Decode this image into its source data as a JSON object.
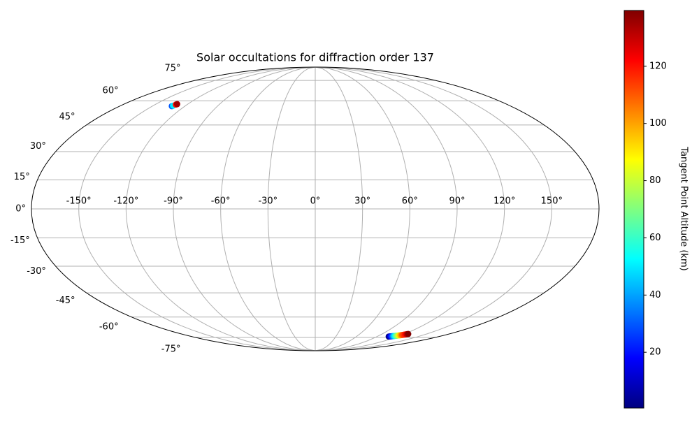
{
  "chart_data": {
    "type": "scatter",
    "projection": "mollweide",
    "title": "Solar occultations for diffraction order 137",
    "colorbar_label": "Tangent Point Altitude (km)",
    "colormap": "jet",
    "grid": true,
    "series": [
      {
        "x": [
          -132,
          -131.5,
          -130.5,
          -130,
          107,
          108.2,
          109.4,
          110.6,
          111.8,
          113,
          114.2,
          115.4,
          116.6,
          117.8,
          119,
          120.2,
          121.4,
          122.6,
          123.8,
          125
        ],
        "y": [
          56.5,
          56.8,
          57.5,
          57.8,
          -74.3,
          -74.2,
          -74.1,
          -74,
          -73.9,
          -73.8,
          -73.7,
          -73.6,
          -73.4,
          -73.3,
          -73.2,
          -73,
          -72.8,
          -72.6,
          -72.4,
          -72.2
        ],
        "c": [
          30,
          50,
          120,
          135,
          1,
          10,
          20,
          30,
          40,
          50,
          60,
          70,
          80,
          90,
          100,
          110,
          115,
          120,
          130,
          139
        ]
      }
    ],
    "xlim": [
      -180,
      180
    ],
    "ylim": [
      -90,
      90
    ],
    "xticks": [
      {
        "value": -150,
        "label": "-150°"
      },
      {
        "value": -120,
        "label": "-120°"
      },
      {
        "value": -90,
        "label": "-90°"
      },
      {
        "value": -60,
        "label": "-60°"
      },
      {
        "value": -30,
        "label": "-30°"
      },
      {
        "value": 0,
        "label": "0°"
      },
      {
        "value": 30,
        "label": "30°"
      },
      {
        "value": 60,
        "label": "60°"
      },
      {
        "value": 90,
        "label": "90°"
      },
      {
        "value": 120,
        "label": "120°"
      },
      {
        "value": 150,
        "label": "150°"
      }
    ],
    "yticks": [
      {
        "value": -75,
        "label": "-75°"
      },
      {
        "value": -60,
        "label": "-60°"
      },
      {
        "value": -45,
        "label": "-45°"
      },
      {
        "value": -30,
        "label": "-30°"
      },
      {
        "value": -15,
        "label": "-15°"
      },
      {
        "value": 0,
        "label": "0°"
      },
      {
        "value": 15,
        "label": "15°"
      },
      {
        "value": 30,
        "label": "30°"
      },
      {
        "value": 45,
        "label": "45°"
      },
      {
        "value": 60,
        "label": "60°"
      },
      {
        "value": 75,
        "label": "75°"
      }
    ],
    "clim": [
      0.5,
      139.5
    ],
    "cticks": [
      20,
      40,
      60,
      80,
      100,
      120
    ]
  }
}
